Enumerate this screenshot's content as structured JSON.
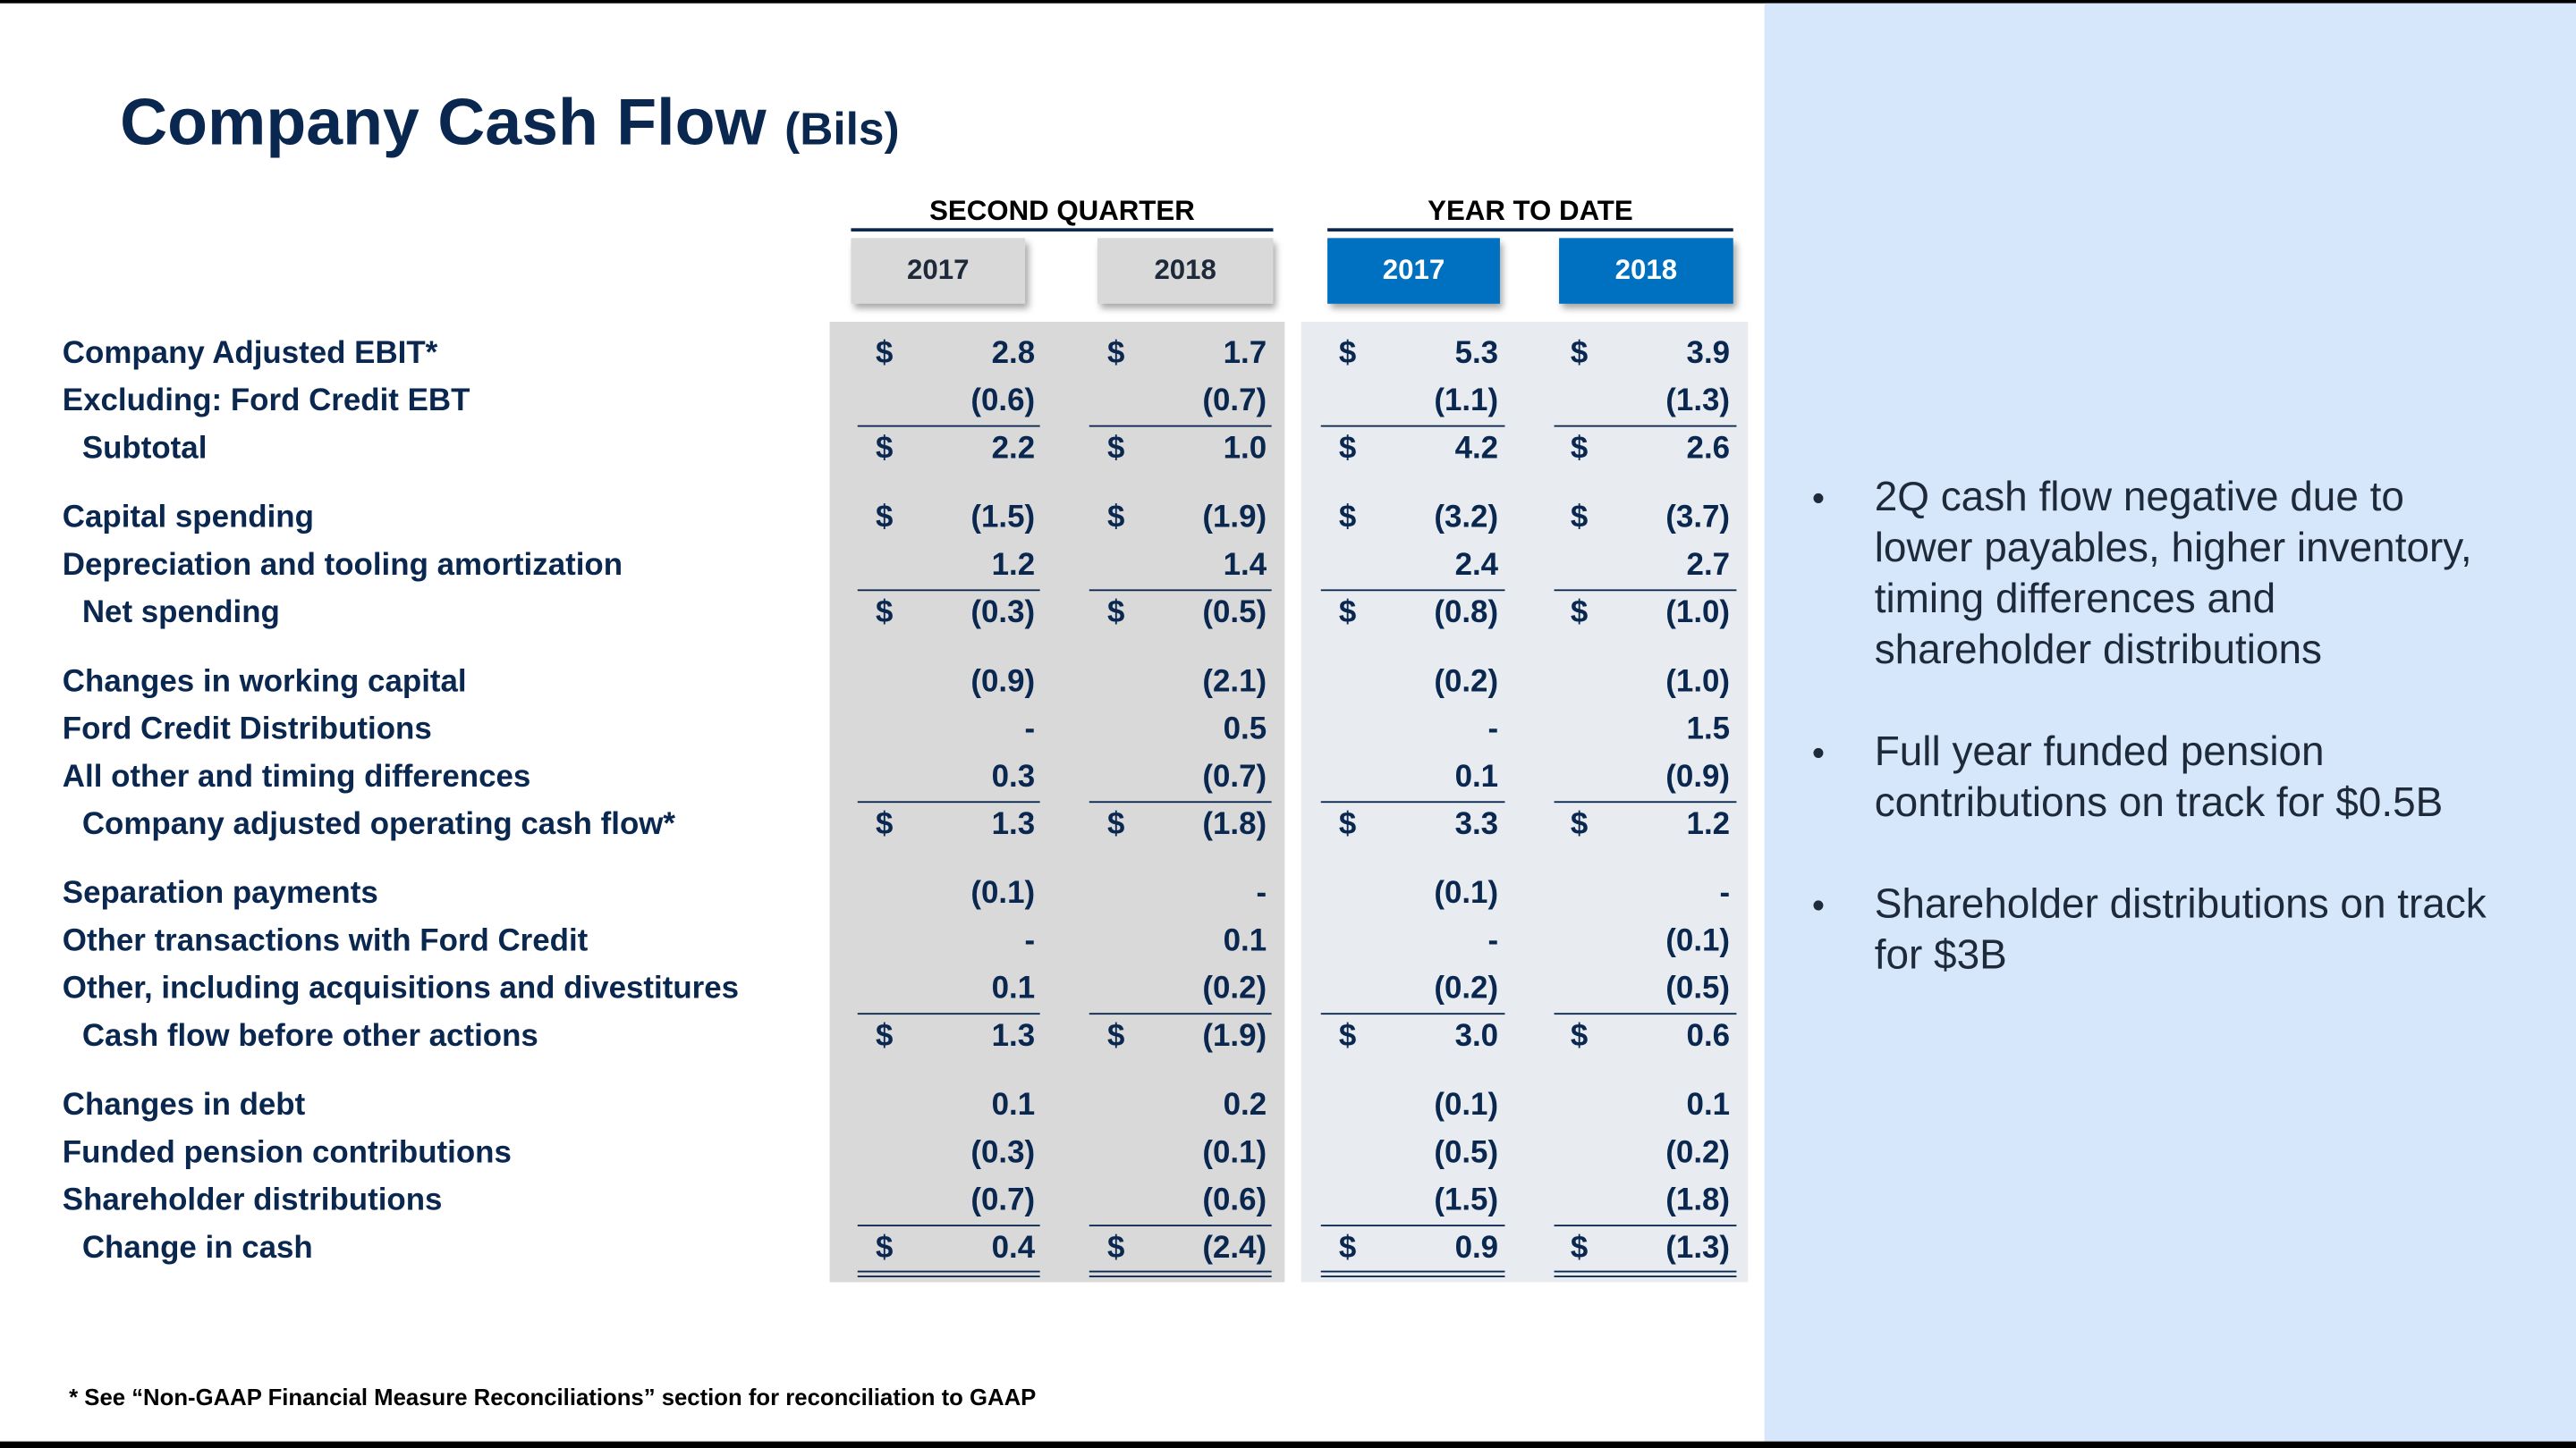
{
  "title": "Company Cash Flow",
  "title_unit": "(Bils)",
  "column_groups": [
    {
      "label": "SECOND QUARTER",
      "years": [
        "2017",
        "2018"
      ]
    },
    {
      "label": "YEAR TO DATE",
      "years": [
        "2017",
        "2018"
      ]
    }
  ],
  "currency": "$",
  "table": {
    "groups": [
      [
        {
          "label": "Company Adjusted EBIT*",
          "values": [
            "2.8",
            "1.7",
            "5.3",
            "3.9"
          ],
          "dollar": true,
          "subtotal": false
        },
        {
          "label": "Excluding:  Ford Credit EBT",
          "values": [
            "(0.6)",
            "(0.7)",
            "(1.1)",
            "(1.3)"
          ],
          "dollar": false,
          "subtotal": false
        },
        {
          "label": "Subtotal",
          "values": [
            "2.2",
            "1.0",
            "4.2",
            "2.6"
          ],
          "dollar": true,
          "subtotal": true
        }
      ],
      [
        {
          "label": "Capital spending",
          "values": [
            "(1.5)",
            "(1.9)",
            "(3.2)",
            "(3.7)"
          ],
          "dollar": true,
          "subtotal": false
        },
        {
          "label": "Depreciation and tooling amortization",
          "values": [
            "1.2",
            "1.4",
            "2.4",
            "2.7"
          ],
          "dollar": false,
          "subtotal": false
        },
        {
          "label": "Net spending",
          "values": [
            "(0.3)",
            "(0.5)",
            "(0.8)",
            "(1.0)"
          ],
          "dollar": true,
          "subtotal": true
        }
      ],
      [
        {
          "label": "Changes in working capital",
          "values": [
            "(0.9)",
            "(2.1)",
            "(0.2)",
            "(1.0)"
          ],
          "dollar": false,
          "subtotal": false
        },
        {
          "label": "Ford Credit Distributions",
          "values": [
            "-",
            "0.5",
            "-",
            "1.5"
          ],
          "dollar": false,
          "subtotal": false
        },
        {
          "label": "All other and timing differences",
          "values": [
            "0.3",
            "(0.7)",
            "0.1",
            "(0.9)"
          ],
          "dollar": false,
          "subtotal": false
        },
        {
          "label": "Company adjusted operating cash flow*",
          "values": [
            "1.3",
            "(1.8)",
            "3.3",
            "1.2"
          ],
          "dollar": true,
          "subtotal": true
        }
      ],
      [
        {
          "label": "Separation payments",
          "values": [
            "(0.1)",
            "-",
            "(0.1)",
            "-"
          ],
          "dollar": false,
          "subtotal": false
        },
        {
          "label": "Other transactions with Ford Credit",
          "values": [
            "-",
            "0.1",
            "-",
            "(0.1)"
          ],
          "dollar": false,
          "subtotal": false
        },
        {
          "label": "Other, including acquisitions and divestitures",
          "values": [
            "0.1",
            "(0.2)",
            "(0.2)",
            "(0.5)"
          ],
          "dollar": false,
          "subtotal": false
        },
        {
          "label": "Cash flow before other actions",
          "values": [
            "1.3",
            "(1.9)",
            "3.0",
            "0.6"
          ],
          "dollar": true,
          "subtotal": true
        }
      ],
      [
        {
          "label": "Changes in debt",
          "values": [
            "0.1",
            "0.2",
            "(0.1)",
            "0.1"
          ],
          "dollar": false,
          "subtotal": false
        },
        {
          "label": "Funded pension contributions",
          "values": [
            "(0.3)",
            "(0.1)",
            "(0.5)",
            "(0.2)"
          ],
          "dollar": false,
          "subtotal": false
        },
        {
          "label": "Shareholder distributions",
          "values": [
            "(0.7)",
            "(0.6)",
            "(1.5)",
            "(1.8)"
          ],
          "dollar": false,
          "subtotal": false
        },
        {
          "label": "Change in cash",
          "values": [
            "0.4",
            "(2.4)",
            "0.9",
            "(1.3)"
          ],
          "dollar": true,
          "subtotal": true
        }
      ]
    ]
  },
  "bullets": [
    "2Q cash flow negative due to lower payables, higher inventory, timing differences and shareholder distributions",
    "Full year funded pension contributions on track for $0.5B",
    "Shareholder distributions on track for $3B"
  ],
  "footnote": "*  See “Non-GAAP Financial Measure Reconciliations” section for reconciliation to GAAP"
}
